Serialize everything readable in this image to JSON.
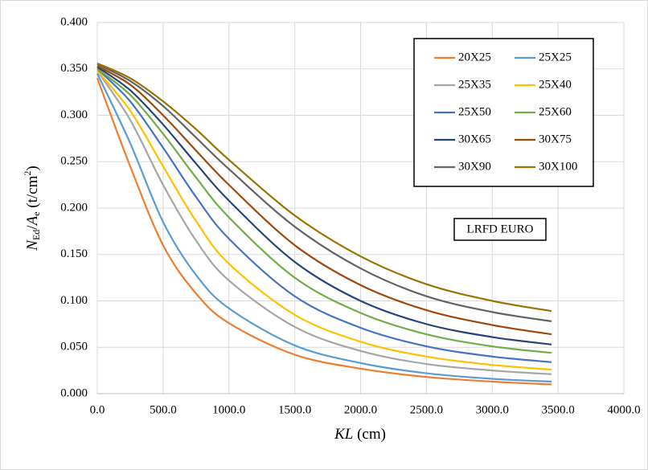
{
  "chart_data": {
    "type": "line",
    "y_label": [
      "N",
      "Ed",
      "/",
      "A",
      "e",
      " (t/cm",
      "2",
      ")"
    ],
    "x_label": [
      "KL",
      " (cm)"
    ],
    "annotation": "LRFD EURO",
    "x": [
      0,
      250,
      500,
      750,
      1000,
      1500,
      2000,
      2500,
      3000,
      3450
    ],
    "series": [
      {
        "name": "20X25",
        "color": "#ed7d31",
        "values": [
          0.34,
          0.245,
          0.16,
          0.108,
          0.076,
          0.042,
          0.027,
          0.018,
          0.013,
          0.01
        ]
      },
      {
        "name": "25X25",
        "color": "#5b9bd5",
        "values": [
          0.345,
          0.27,
          0.185,
          0.128,
          0.092,
          0.052,
          0.033,
          0.022,
          0.016,
          0.013
        ]
      },
      {
        "name": "25X35",
        "color": "#a5a5a5",
        "values": [
          0.348,
          0.295,
          0.225,
          0.165,
          0.122,
          0.072,
          0.046,
          0.032,
          0.025,
          0.021
        ]
      },
      {
        "name": "25X40",
        "color": "#ffc000",
        "values": [
          0.348,
          0.305,
          0.245,
          0.186,
          0.14,
          0.085,
          0.056,
          0.04,
          0.031,
          0.026
        ]
      },
      {
        "name": "25X50",
        "color": "#4472c4",
        "values": [
          0.35,
          0.315,
          0.265,
          0.212,
          0.167,
          0.105,
          0.071,
          0.051,
          0.04,
          0.034
        ]
      },
      {
        "name": "25X60",
        "color": "#70ad47",
        "values": [
          0.35,
          0.322,
          0.28,
          0.233,
          0.19,
          0.125,
          0.087,
          0.064,
          0.051,
          0.044
        ]
      },
      {
        "name": "30X65",
        "color": "#264478",
        "values": [
          0.352,
          0.327,
          0.29,
          0.248,
          0.208,
          0.142,
          0.1,
          0.075,
          0.061,
          0.053
        ]
      },
      {
        "name": "30X75",
        "color": "#9e480e",
        "values": [
          0.353,
          0.333,
          0.3,
          0.262,
          0.225,
          0.16,
          0.117,
          0.09,
          0.074,
          0.064
        ]
      },
      {
        "name": "30X90",
        "color": "#636363",
        "values": [
          0.355,
          0.337,
          0.31,
          0.276,
          0.242,
          0.18,
          0.135,
          0.105,
          0.088,
          0.078
        ]
      },
      {
        "name": "30X100",
        "color": "#997300",
        "values": [
          0.356,
          0.34,
          0.315,
          0.285,
          0.252,
          0.192,
          0.148,
          0.118,
          0.1,
          0.089
        ]
      }
    ],
    "xlim": [
      0,
      4000
    ],
    "xticks": [
      {
        "value": 0,
        "label": "0.0"
      },
      {
        "value": 500,
        "label": "500.0"
      },
      {
        "value": 1000,
        "label": "1000.0"
      },
      {
        "value": 1500,
        "label": "1500.0"
      },
      {
        "value": 2000,
        "label": "2000.0"
      },
      {
        "value": 2500,
        "label": "2500.0"
      },
      {
        "value": 3000,
        "label": "3000.0"
      },
      {
        "value": 3500,
        "label": "3500.0"
      },
      {
        "value": 4000,
        "label": "4000.0"
      }
    ],
    "ylim": [
      0,
      0.4
    ],
    "yticks": [
      {
        "value": 0,
        "label": "0.000"
      },
      {
        "value": 0.05,
        "label": "0.050"
      },
      {
        "value": 0.1,
        "label": "0.100"
      },
      {
        "value": 0.15,
        "label": "0.150"
      },
      {
        "value": 0.2,
        "label": "0.200"
      },
      {
        "value": 0.25,
        "label": "0.250"
      },
      {
        "value": 0.3,
        "label": "0.300"
      },
      {
        "value": 0.35,
        "label": "0.350"
      },
      {
        "value": 0.4,
        "label": "0.400"
      }
    ],
    "grid": true,
    "legend": "upper right"
  }
}
